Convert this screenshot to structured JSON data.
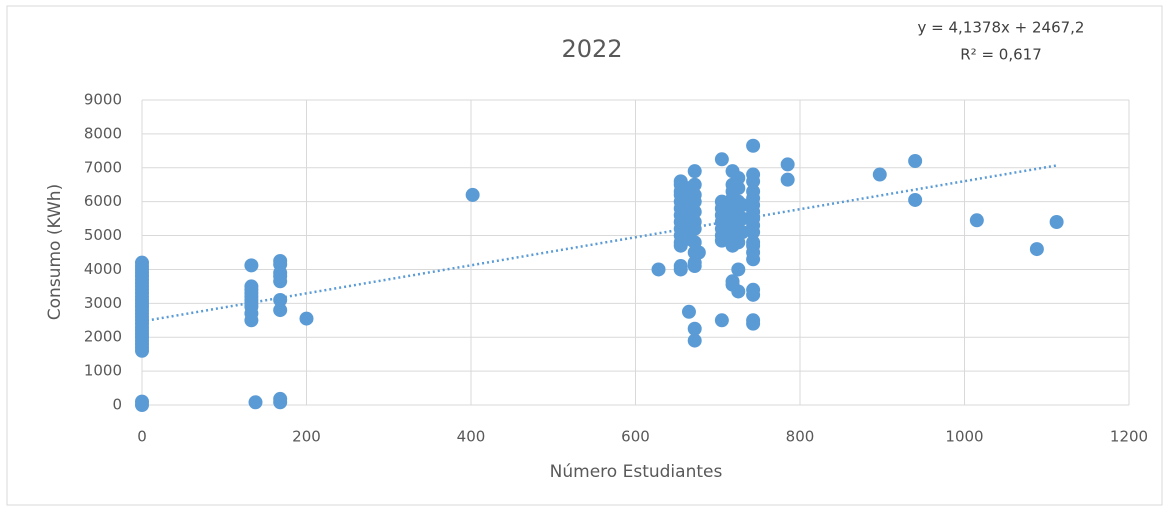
{
  "chart_data": {
    "type": "scatter",
    "title": "2022",
    "x_label": "Número Estudiantes",
    "y_label": "Consumo (KWh)",
    "annotations": [
      "y = 4,1378x + 2467,2",
      "R² = 0,617"
    ],
    "xlim": [
      0,
      1200
    ],
    "xticks": [
      0,
      200,
      400,
      600,
      800,
      1000,
      1200
    ],
    "ylim": [
      0,
      9000
    ],
    "yticks": [
      0,
      1000,
      2000,
      3000,
      4000,
      5000,
      6000,
      7000,
      8000,
      9000
    ],
    "grid": true,
    "trendline": {
      "slope": 4.1378,
      "intercept": 2467.2,
      "color": "#5b9bd5"
    },
    "series": [
      {
        "name": "Consumo",
        "color": "#5b9bd5",
        "x": [
          0,
          0,
          0,
          0,
          0,
          0,
          0,
          0,
          0,
          0,
          0,
          0,
          0,
          0,
          0,
          0,
          0,
          0,
          0,
          0,
          0,
          0,
          0,
          0,
          0,
          0,
          0,
          0,
          0,
          133,
          133,
          133,
          133,
          133,
          133,
          133,
          133,
          133,
          133,
          138,
          168,
          168,
          168,
          168,
          168,
          168,
          168,
          168,
          168,
          200,
          402,
          628,
          655,
          655,
          655,
          655,
          655,
          655,
          655,
          655,
          655,
          655,
          655,
          655,
          655,
          655,
          665,
          665,
          665,
          665,
          665,
          665,
          665,
          665,
          665,
          672,
          672,
          672,
          672,
          672,
          672,
          672,
          672,
          672,
          672,
          672,
          672,
          672,
          677,
          705,
          705,
          705,
          705,
          705,
          705,
          705,
          705,
          705,
          718,
          718,
          718,
          718,
          718,
          718,
          718,
          718,
          718,
          718,
          718,
          718,
          718,
          725,
          725,
          725,
          725,
          725,
          725,
          725,
          725,
          730,
          730,
          730,
          743,
          743,
          743,
          743,
          743,
          743,
          743,
          743,
          743,
          743,
          743,
          743,
          743,
          743,
          743,
          743,
          743,
          743,
          785,
          785,
          897,
          940,
          940,
          1015,
          1088,
          1112
        ],
        "values": [
          4200,
          4100,
          4000,
          3900,
          3800,
          3700,
          3600,
          3500,
          3400,
          3300,
          3200,
          3100,
          3000,
          2900,
          2800,
          2700,
          2600,
          2500,
          2400,
          2300,
          2200,
          2100,
          2000,
          1900,
          1800,
          1700,
          1600,
          100,
          0,
          4120,
          3500,
          3400,
          3300,
          3200,
          3100,
          3000,
          2900,
          2700,
          2500,
          80,
          4250,
          4150,
          3900,
          3800,
          3650,
          3100,
          2800,
          180,
          80,
          2550,
          6200,
          4000,
          6600,
          6500,
          6300,
          6200,
          6000,
          5800,
          5600,
          5400,
          5200,
          5000,
          4800,
          4700,
          4100,
          4000,
          6400,
          6100,
          5900,
          5700,
          5500,
          5300,
          5100,
          4900,
          2750,
          6900,
          6500,
          6200,
          6000,
          5700,
          5400,
          5200,
          4800,
          4500,
          4200,
          4100,
          2250,
          1900,
          4500,
          7250,
          6000,
          5800,
          5600,
          5400,
          5200,
          5000,
          4850,
          2500,
          6900,
          6500,
          6300,
          6100,
          5900,
          5700,
          5500,
          5300,
          5100,
          4900,
          4700,
          3650,
          3550,
          6700,
          6400,
          6000,
          5600,
          5200,
          4800,
          4000,
          3350,
          5900,
          5500,
          5100,
          7650,
          6800,
          6600,
          6300,
          6100,
          5900,
          5700,
          5500,
          5300,
          5100,
          4800,
          4700,
          4500,
          4300,
          3400,
          3250,
          2500,
          2400,
          7100,
          6650,
          6800,
          7200,
          6050,
          5450,
          4600,
          5400
        ]
      }
    ]
  }
}
